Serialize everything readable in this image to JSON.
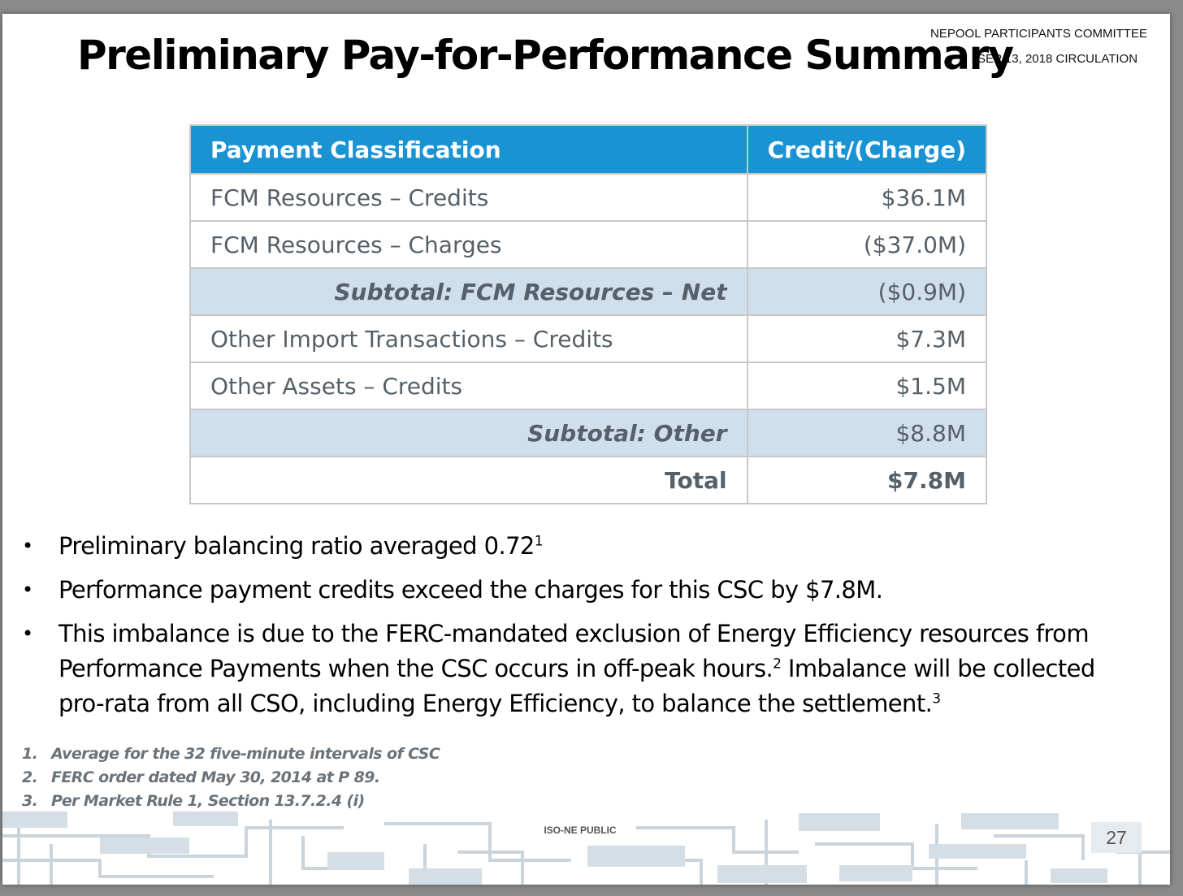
{
  "header": {
    "org_line": "NEPOOL PARTICIPANTS COMMITTEE",
    "circulation_line": "SEP 13, 2018 CIRCULATION"
  },
  "slide": {
    "title": "Preliminary Pay-for-Performance Summary"
  },
  "table": {
    "col1_header": "Payment Classification",
    "col2_header": "Credit/(Charge)",
    "rows": [
      {
        "label": "FCM Resources – Credits",
        "value": "$36.1M"
      },
      {
        "label": "FCM Resources – Charges",
        "value": "($37.0M)"
      },
      {
        "label": "Subtotal:  FCM Resources – Net",
        "value": "($0.9M)"
      },
      {
        "label": "Other Import Transactions – Credits",
        "value": "$7.3M"
      },
      {
        "label": "Other Assets – Credits",
        "value": "$1.5M"
      },
      {
        "label": "Subtotal: Other",
        "value": "$8.8M"
      },
      {
        "label": "Total",
        "value": "$7.8M"
      }
    ]
  },
  "bullets": [
    {
      "text": "Preliminary balancing ratio averaged 0.72",
      "sup": "1"
    },
    {
      "text": "Performance payment credits exceed the charges for this CSC by $7.8M."
    },
    {
      "text_a": "This imbalance is due to the FERC-mandated exclusion of Energy Efficiency resources from Performance Payments when the CSC occurs in off-peak hours.",
      "sup_a": "2",
      "text_b": " Imbalance will be collected pro-rata from all CSO, including Energy Efficiency, to balance the  settlement.",
      "sup_b": "3"
    }
  ],
  "footnotes": [
    {
      "num": "1.",
      "text": "Average for the 32 five-minute intervals of CSC"
    },
    {
      "num": "2.",
      "text": "FERC order dated May 30, 2014 at P 89."
    },
    {
      "num": "3.",
      "text": "Per Market Rule 1, Section 13.7.2.4 (i)"
    }
  ],
  "footer": {
    "label": "ISO-NE PUBLIC",
    "page_number": "27"
  }
}
